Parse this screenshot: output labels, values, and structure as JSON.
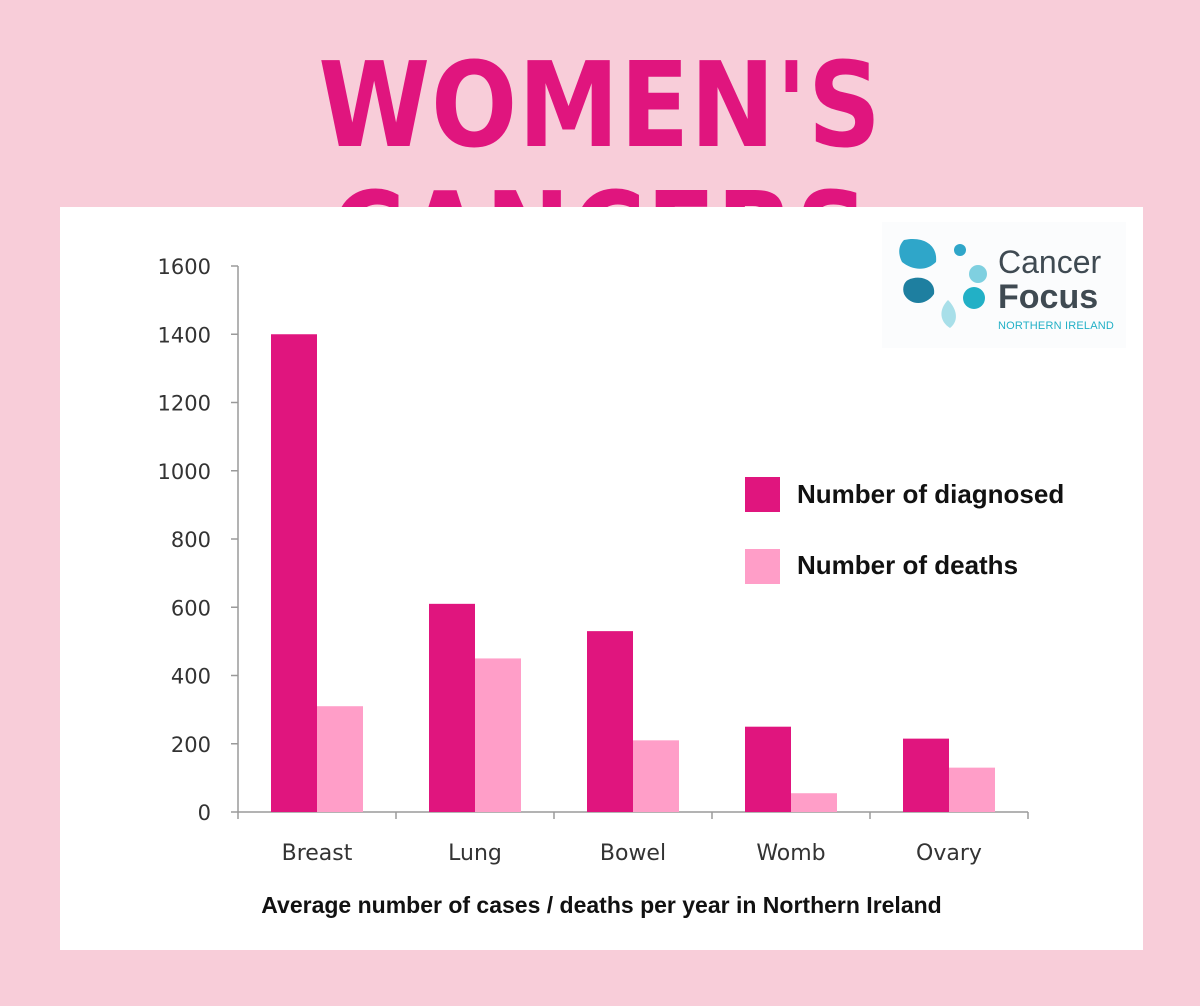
{
  "header": {
    "title": "WOMEN'S CANCERS"
  },
  "logo": {
    "line1": "Cancer",
    "line2": "Focus",
    "line3": "NORTHERN IRELAND",
    "colors": [
      "#2fa6c9",
      "#1e7fa0",
      "#7fd0e0",
      "#a8dfe9"
    ]
  },
  "colors": {
    "background": "#f8cdd9",
    "title": "#e0157e",
    "diagnosed": "#e0157e",
    "deaths": "#ff9ec8"
  },
  "chart_data": {
    "type": "bar",
    "categories": [
      "Breast",
      "Lung",
      "Bowel",
      "Womb",
      "Ovary"
    ],
    "series": [
      {
        "name": "Number of diagnosed",
        "values": [
          1400,
          610,
          530,
          250,
          215
        ]
      },
      {
        "name": "Number of deaths",
        "values": [
          310,
          450,
          210,
          55,
          130
        ]
      }
    ],
    "yticks": [
      "0",
      "200",
      "400",
      "600",
      "800",
      "1000",
      "1200",
      "1400",
      "1600"
    ],
    "ylim": [
      0,
      1600
    ],
    "xlabel": "Average number of cases / deaths per year in Northern Ireland",
    "ylabel": "",
    "grid": false,
    "legend_position": "right"
  }
}
